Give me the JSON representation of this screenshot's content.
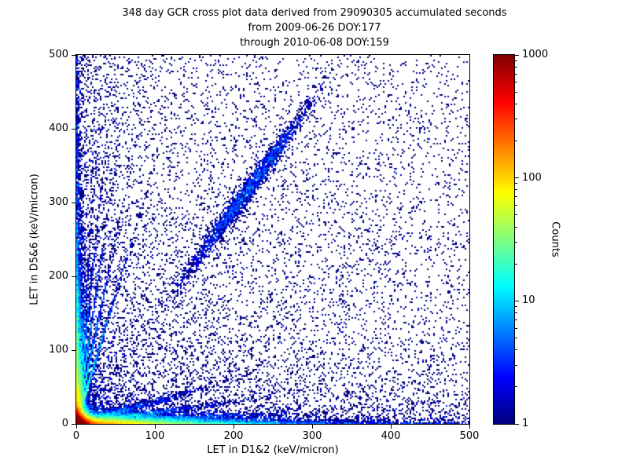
{
  "chart_data": {
    "type": "scatter",
    "render_style": "2d-histogram-log-density",
    "title_lines": [
      "348 day GCR cross plot data derived from 29090305 accumulated seconds",
      "from 2009-06-26 DOY:177",
      "through 2010-06-08 DOY:159"
    ],
    "xlabel": "LET in D1&2 (keV/micron)",
    "ylabel": "LET in D5&6 (keV/micron)",
    "xlim": [
      0,
      500
    ],
    "ylim": [
      0,
      500
    ],
    "xticks": [
      0,
      100,
      200,
      300,
      400,
      500
    ],
    "yticks": [
      0,
      100,
      200,
      300,
      400,
      500
    ],
    "grid": false,
    "colorbar": {
      "label": "Counts",
      "scale": "log",
      "min": 1,
      "max": 1000,
      "ticks": [
        1,
        10,
        100,
        1000
      ],
      "colormap": "jet",
      "position": "right"
    },
    "features": [
      "very dense hot core (red/yellow, 100-1000 counts) at the origin below ~20 keV/micron in both detectors",
      "dense band hugging the x-axis (y < 10) out to ~250 keV/micron, green/cyan fading to blue",
      "dense band hugging the y-axis (x < 10) up to ~350 keV/micron",
      "several faint streaks fanning out of the origin at different slopes",
      "diagonal coincidence band near y = 1.45x with a denser clump around (215, 312)",
      "sparse single-count dark-blue events scattered across the whole plane, density falling away from the origin"
    ],
    "point_generators": {
      "seed": 42,
      "space": "data units 0-500 on both axes",
      "clusters": [
        {
          "kind": "exp2d",
          "name": "origin-core",
          "n": 60000,
          "xscale": 4.2,
          "yscale": 4.2
        },
        {
          "kind": "exp2d",
          "name": "x-axis-band",
          "n": 16000,
          "xscale": 72,
          "yscale": 3.8
        },
        {
          "kind": "exp2d",
          "name": "y-axis-band",
          "n": 10000,
          "xscale": 3.5,
          "yscale": 75
        },
        {
          "kind": "streak",
          "name": "fan-streak-1",
          "n": 1300,
          "slope": 3.5,
          "xscale": 18,
          "jitter": 2.5
        },
        {
          "kind": "streak",
          "name": "fan-streak-2",
          "n": 1100,
          "slope": 5,
          "xscale": 14,
          "jitter": 2.5
        },
        {
          "kind": "streak",
          "name": "fan-streak-3",
          "n": 950,
          "slope": 7,
          "xscale": 11,
          "jitter": 2.5
        },
        {
          "kind": "streak",
          "name": "fan-streak-4",
          "n": 850,
          "slope": 10,
          "xscale": 8,
          "jitter": 2.5
        },
        {
          "kind": "streak",
          "name": "fan-streak-5",
          "n": 650,
          "slope": 14,
          "xscale": 6,
          "jitter": 2.5
        },
        {
          "kind": "streak",
          "name": "low-streak-1",
          "n": 1500,
          "slope": 0.15,
          "xscale": 60,
          "jitter": 2
        },
        {
          "kind": "streak",
          "name": "low-streak-2",
          "n": 1000,
          "slope": 0.3,
          "xscale": 55,
          "jitter": 2.5
        },
        {
          "kind": "streak",
          "name": "low-streak-3",
          "n": 1300,
          "slope": 0.06,
          "xscale": 75,
          "jitter": 1.5
        },
        {
          "kind": "diagonal",
          "name": "coincidence-band",
          "n": 2400,
          "cx": 215,
          "csd": 40,
          "slope": 1.45,
          "jitter": 9
        },
        {
          "kind": "powerlaw",
          "name": "falloff-scatter",
          "n": 9500,
          "exp": 2.2
        },
        {
          "kind": "uniform",
          "name": "sparse-background",
          "n": 2600
        }
      ]
    }
  },
  "styles": {
    "background": "#ffffff",
    "text_color": "#000000",
    "spine_color": "#000000",
    "min_count_color": "#000080",
    "max_count_color": "#800000"
  }
}
